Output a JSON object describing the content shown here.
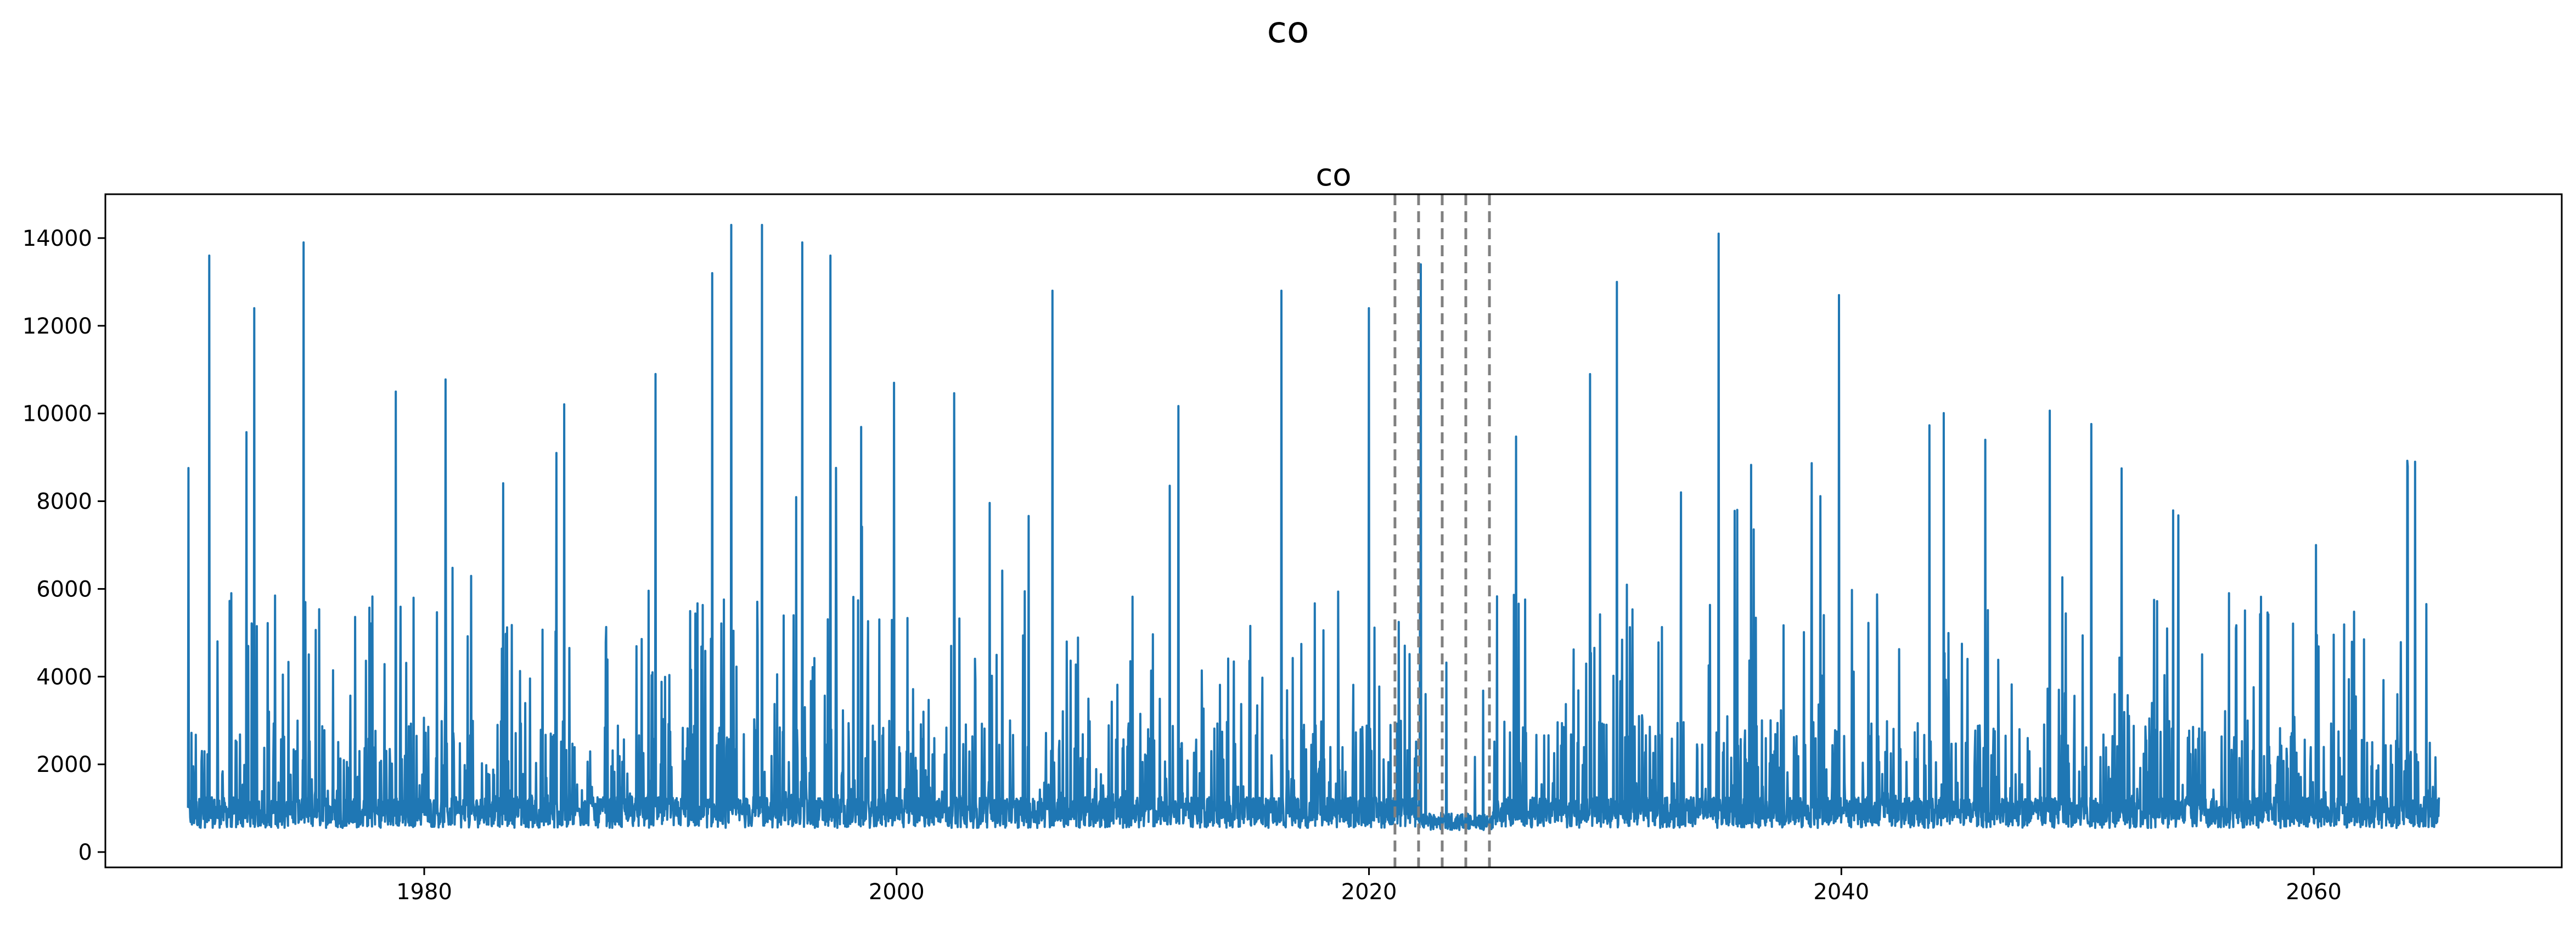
{
  "figure": {
    "suptitle": "co"
  },
  "chart_data": {
    "type": "line",
    "title": "co",
    "xlabel": "",
    "ylabel": "",
    "xlim": [
      1966.5,
      2070.5
    ],
    "ylim": [
      -350,
      15000
    ],
    "x_ticks": [
      1980,
      2000,
      2020,
      2040,
      2060
    ],
    "y_ticks": [
      0,
      2000,
      4000,
      6000,
      8000,
      10000,
      12000,
      14000
    ],
    "x_tick_labels": [
      "1980",
      "2000",
      "2020",
      "2040",
      "2060"
    ],
    "y_tick_labels": [
      "0",
      "2000",
      "4000",
      "6000",
      "8000",
      "10000",
      "12000",
      "14000"
    ],
    "grid": false,
    "series": [
      {
        "color": "#1f77b4",
        "x_start": 1970,
        "x_end": 2065.3,
        "baseline_approx": 900,
        "value_range": [
          300,
          14300
        ],
        "notable_peaks": [
          {
            "x": 1970.9,
            "y": 13600
          },
          {
            "x": 1972.8,
            "y": 12400
          },
          {
            "x": 1974.9,
            "y": 13900
          },
          {
            "x": 1978.8,
            "y": 10500
          },
          {
            "x": 1985.6,
            "y": 9100
          },
          {
            "x": 1989.8,
            "y": 10900
          },
          {
            "x": 1992.2,
            "y": 13200
          },
          {
            "x": 1993.0,
            "y": 14300
          },
          {
            "x": 1994.3,
            "y": 14300
          },
          {
            "x": 1996.0,
            "y": 13900
          },
          {
            "x": 1997.2,
            "y": 13600
          },
          {
            "x": 1999.9,
            "y": 10700
          },
          {
            "x": 2006.6,
            "y": 12800
          },
          {
            "x": 2016.3,
            "y": 12800
          },
          {
            "x": 2020.0,
            "y": 12400
          },
          {
            "x": 2022.2,
            "y": 13400
          },
          {
            "x": 2030.5,
            "y": 13000
          },
          {
            "x": 2034.8,
            "y": 14100
          },
          {
            "x": 2039.9,
            "y": 12700
          },
          {
            "x": 2046.1,
            "y": 9400
          },
          {
            "x": 2060.1,
            "y": 7000
          },
          {
            "x": 2064.3,
            "y": 8900
          }
        ]
      }
    ],
    "vertical_lines": {
      "x": [
        2021.1,
        2022.1,
        2023.1,
        2024.1,
        2025.1
      ],
      "style": "dashed",
      "color": "#808080"
    }
  }
}
